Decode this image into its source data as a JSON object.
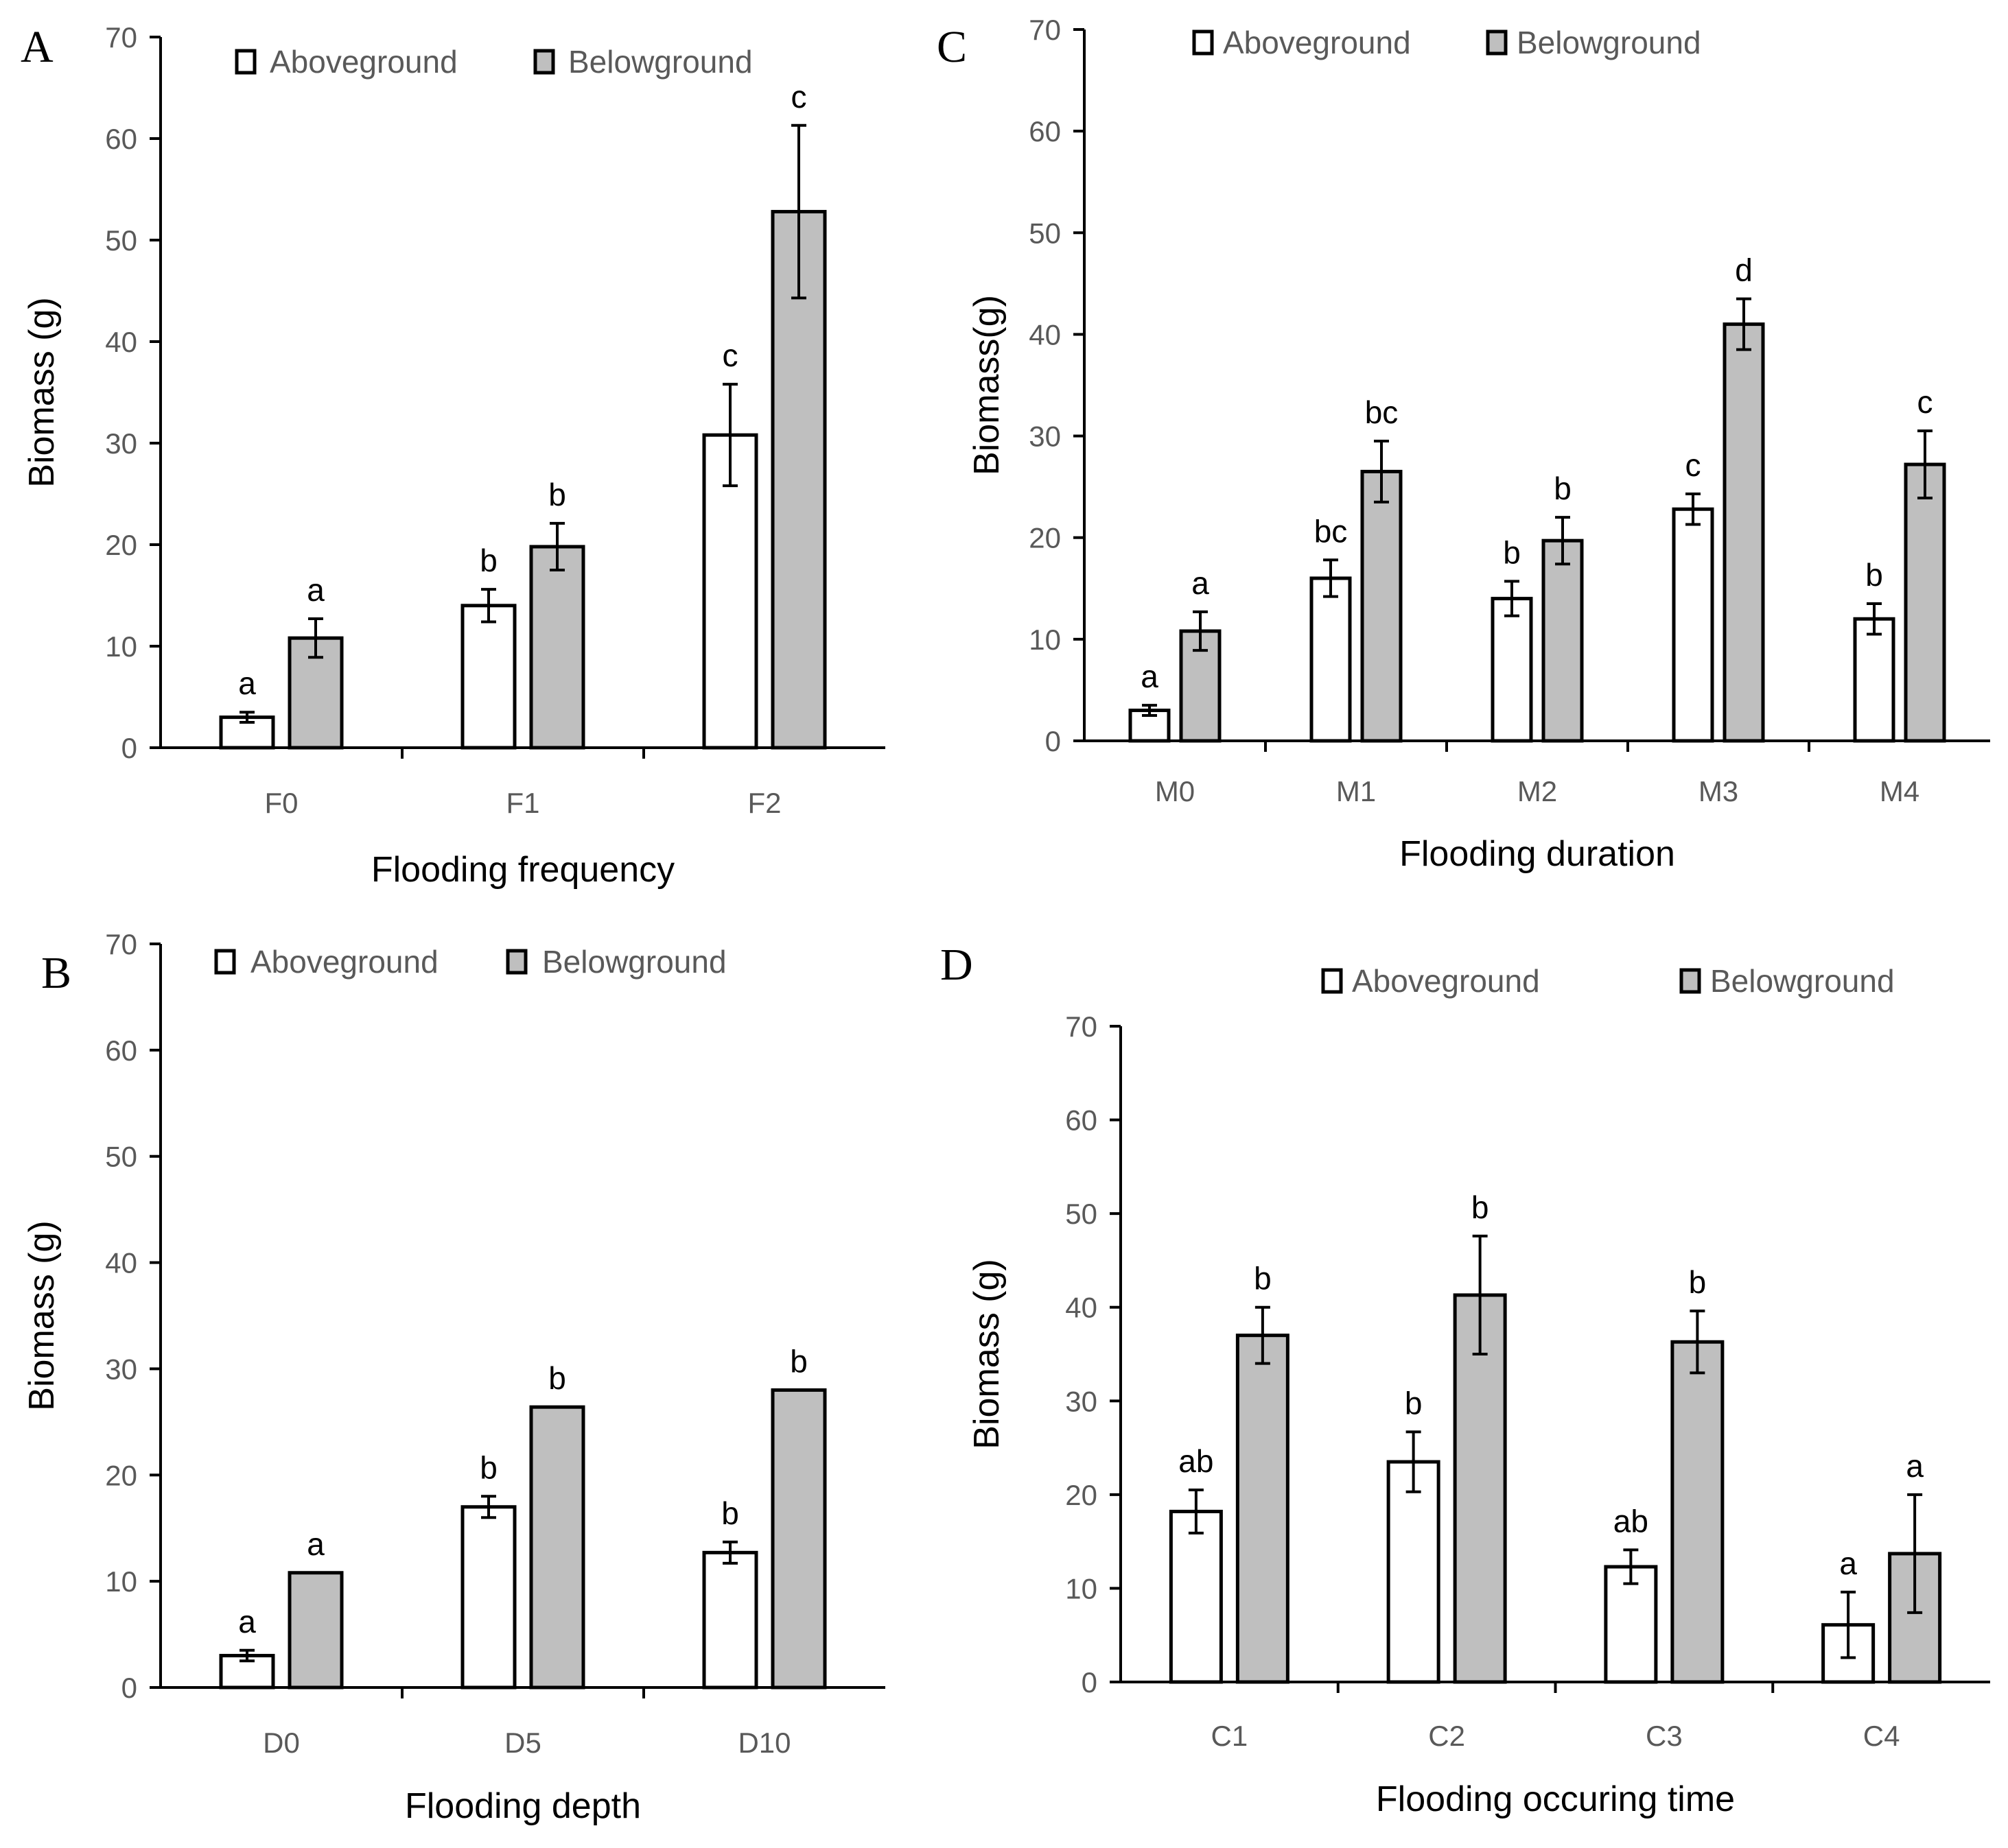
{
  "colors": {
    "aboveground": "#ffffff",
    "belowground": "#bfbfbf"
  },
  "chart_data": [
    {
      "panel": "A",
      "type": "bar",
      "xlabel": "Flooding frequency",
      "ylabel": "Biomass (g)",
      "ylim": [
        0,
        70
      ],
      "yticks": [
        "0",
        "10",
        "20",
        "30",
        "40",
        "50",
        "60",
        "70"
      ],
      "categories": [
        "F0",
        "F1",
        "F2"
      ],
      "legend": [
        "Aboveground",
        "Belowground"
      ],
      "series": [
        {
          "name": "Aboveground",
          "values": [
            3,
            14,
            30.8
          ],
          "errors": [
            0.5,
            1.6,
            5
          ],
          "letters": [
            "a",
            "b",
            "c"
          ]
        },
        {
          "name": "Belowground",
          "values": [
            10.8,
            19.8,
            52.8
          ],
          "errors": [
            1.9,
            2.3,
            8.5
          ],
          "letters": [
            "a",
            "b",
            "c"
          ]
        }
      ]
    },
    {
      "panel": "B",
      "type": "bar",
      "xlabel": "Flooding depth",
      "ylabel": "Biomass (g)",
      "ylim": [
        0,
        70
      ],
      "yticks": [
        "0",
        "10",
        "20",
        "30",
        "40",
        "50",
        "60",
        "70"
      ],
      "categories": [
        "D0",
        "D5",
        "D10"
      ],
      "legend": [
        "Aboveground",
        "Belowground"
      ],
      "series": [
        {
          "name": "Aboveground",
          "values": [
            3,
            17,
            12.7
          ],
          "errors": [
            0.5,
            1,
            1
          ],
          "letters": [
            "a",
            "b",
            "b"
          ]
        },
        {
          "name": "Belowground",
          "values": [
            10.8,
            26.4,
            28
          ],
          "errors": [
            0,
            0,
            0
          ],
          "letters": [
            "a",
            "b",
            "b"
          ]
        }
      ]
    },
    {
      "panel": "C",
      "type": "bar",
      "xlabel": "Flooding duration",
      "ylabel": "Biomass(g)",
      "ylim": [
        0,
        70
      ],
      "yticks": [
        "0",
        "10",
        "20",
        "30",
        "40",
        "50",
        "60",
        "70"
      ],
      "categories": [
        "M0",
        "M1",
        "M2",
        "M3",
        "M4"
      ],
      "legend": [
        "Aboveground",
        "Belowground"
      ],
      "series": [
        {
          "name": "Aboveground",
          "values": [
            3,
            16,
            14,
            22.8,
            12
          ],
          "errors": [
            0.5,
            1.8,
            1.7,
            1.5,
            1.5
          ],
          "letters": [
            "a",
            "bc",
            "b",
            "c",
            "b"
          ]
        },
        {
          "name": "Belowground",
          "values": [
            10.8,
            26.5,
            19.7,
            41,
            27.2
          ],
          "errors": [
            1.9,
            3,
            2.3,
            2.5,
            3.3
          ],
          "letters": [
            "a",
            "bc",
            "b",
            "d",
            "c"
          ]
        }
      ]
    },
    {
      "panel": "D",
      "type": "bar",
      "xlabel": "Flooding occuring time",
      "ylabel": "Biomass (g)",
      "ylim": [
        0,
        70
      ],
      "yticks": [
        "0",
        "10",
        "20",
        "30",
        "40",
        "50",
        "60",
        "70"
      ],
      "categories": [
        "C1",
        "C2",
        "C3",
        "C4"
      ],
      "legend": [
        "Aboveground",
        "Belowground"
      ],
      "series": [
        {
          "name": "Aboveground",
          "values": [
            18.2,
            23.5,
            12.3,
            6.1
          ],
          "errors": [
            2.3,
            3.2,
            1.8,
            3.5
          ],
          "letters": [
            "ab",
            "b",
            "ab",
            "a"
          ]
        },
        {
          "name": "Belowground",
          "values": [
            37,
            41.3,
            36.3,
            13.7
          ],
          "errors": [
            3,
            6.3,
            3.3,
            6.3
          ],
          "letters": [
            "b",
            "b",
            "b",
            "a"
          ]
        }
      ]
    }
  ]
}
